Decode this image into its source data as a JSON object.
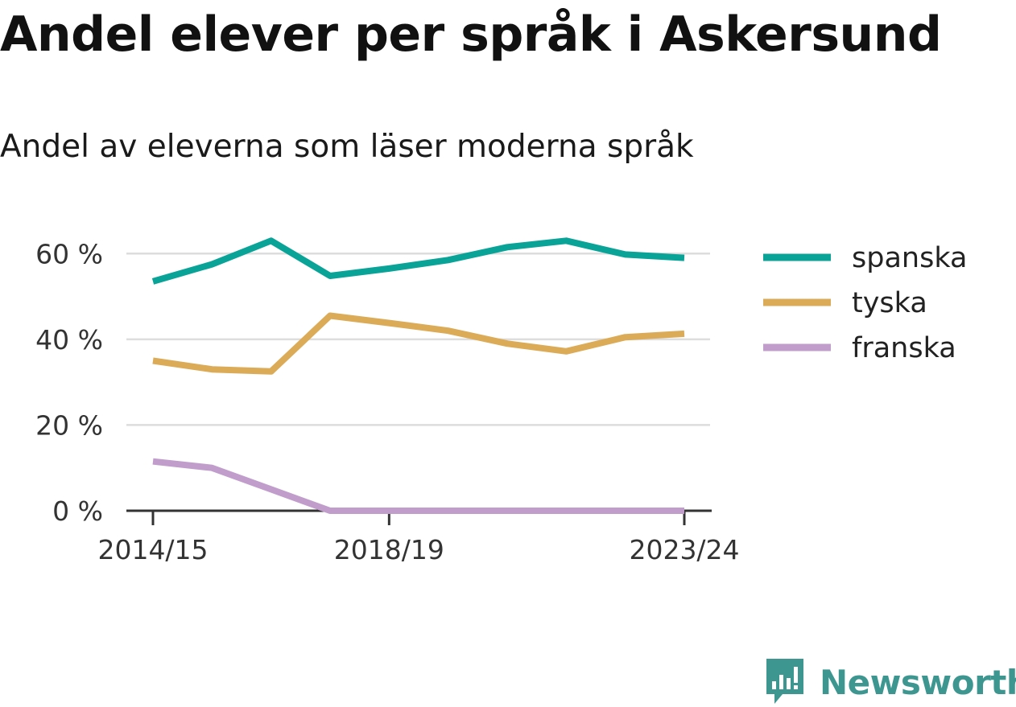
{
  "title": "Andel elever per språk i Askersund",
  "subtitle": "Andel av eleverna som läser moderna språk",
  "brand": {
    "name": "Newsworthy"
  },
  "chart_data": {
    "type": "line",
    "x": [
      "2014/15",
      "2015/16",
      "2016/17",
      "2017/18",
      "2018/19",
      "2019/20",
      "2020/21",
      "2021/22",
      "2022/23",
      "2023/24"
    ],
    "x_tick_labels": [
      "2014/15",
      "2018/19",
      "2023/24"
    ],
    "y_ticks": [
      0,
      20,
      40,
      60
    ],
    "y_tick_labels": [
      "0 %",
      "20 %",
      "40 %",
      "60 %"
    ],
    "ylim": [
      0,
      70
    ],
    "grid": true,
    "legend_position": "right",
    "series": [
      {
        "name": "spanska",
        "color": "#0aa398",
        "values": [
          53.5,
          57.5,
          63.0,
          54.8,
          56.5,
          58.5,
          61.5,
          63.0,
          59.8,
          59.0
        ]
      },
      {
        "name": "tyska",
        "color": "#dbab57",
        "values": [
          35.0,
          33.0,
          32.5,
          45.5,
          43.8,
          42.0,
          39.0,
          37.2,
          40.5,
          41.3
        ]
      },
      {
        "name": "franska",
        "color": "#c19dcc",
        "values": [
          11.5,
          10.0,
          5.0,
          0,
          0,
          0,
          0,
          0,
          0,
          0
        ]
      }
    ]
  }
}
